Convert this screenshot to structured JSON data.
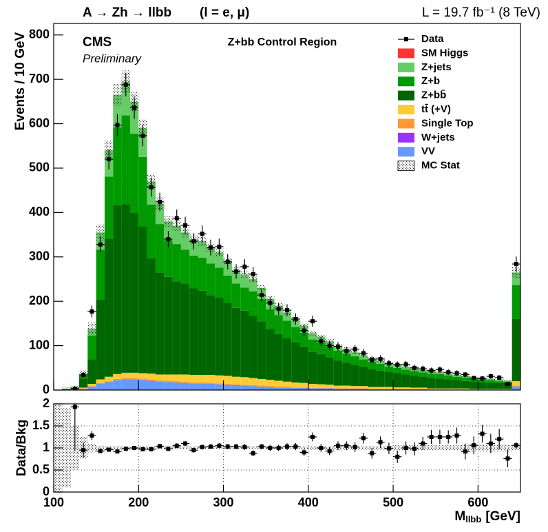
{
  "chart_data": [
    {
      "type": "histogram",
      "title": "A → Zh → llbb",
      "title_suffix": "(l = e, μ)",
      "luminosity": "L = 19.7 fb⁻¹  (8 TeV)",
      "experiment": "CMS",
      "status": "Preliminary",
      "region": "Z+bb Control Region",
      "y_label": "Events / 10 GeV",
      "ylim": [
        0,
        826
      ],
      "yticks": [
        0,
        100,
        200,
        300,
        400,
        500,
        600,
        700,
        800
      ],
      "bins": [
        100,
        110,
        120,
        130,
        140,
        150,
        160,
        170,
        180,
        190,
        200,
        210,
        220,
        230,
        240,
        250,
        260,
        270,
        280,
        290,
        300,
        310,
        320,
        330,
        340,
        350,
        360,
        370,
        380,
        390,
        400,
        410,
        420,
        430,
        440,
        450,
        460,
        470,
        480,
        490,
        500,
        510,
        520,
        530,
        540,
        550,
        560,
        570,
        580,
        590,
        600,
        610,
        620,
        630,
        640,
        650
      ],
      "legend": "upper right",
      "data": {
        "name": "Data",
        "color": "#000000",
        "values": [
          null,
          null,
          3,
          34,
          177,
          328,
          520,
          597,
          688,
          636,
          573,
          457,
          424,
          340,
          387,
          371,
          335,
          352,
          321,
          323,
          289,
          267,
          278,
          261,
          214,
          196,
          183,
          180,
          160,
          134,
          155,
          110,
          100,
          98,
          88,
          92,
          83,
          68,
          70,
          60,
          57,
          58,
          50,
          48,
          44,
          46,
          40,
          38,
          35,
          27,
          26,
          31,
          28,
          14,
          284
        ],
        "errors": [
          null,
          null,
          1.7,
          5.8,
          13.3,
          18.1,
          22.8,
          24.4,
          26.2,
          25.2,
          23.9,
          21.4,
          20.6,
          18.4,
          19.7,
          19.3,
          18.3,
          18.8,
          17.9,
          18,
          17,
          16.3,
          16.7,
          16.2,
          14.6,
          14,
          13.5,
          13.4,
          12.6,
          11.6,
          12.4,
          10.5,
          10,
          9.9,
          9.4,
          9.6,
          9.1,
          8.2,
          8.4,
          7.7,
          7.5,
          7.6,
          7.1,
          6.9,
          6.6,
          6.8,
          6.3,
          6.2,
          5.9,
          5.2,
          5.1,
          5.6,
          5.3,
          3.7,
          16.9
        ]
      },
      "series": [
        {
          "name": "SM Higgs",
          "color": "#ff3333",
          "values": [
            0,
            0,
            0,
            0,
            0,
            0,
            0,
            0,
            0,
            0,
            0,
            0,
            0,
            0,
            0,
            0,
            0,
            0,
            0,
            0,
            0,
            0,
            0,
            0,
            0,
            0,
            0,
            0,
            0,
            0,
            0,
            0,
            0,
            0,
            0,
            0,
            0,
            0,
            0,
            0,
            0,
            0,
            0,
            0,
            0,
            0,
            0,
            0,
            0,
            0,
            0,
            0,
            0,
            0,
            0
          ]
        },
        {
          "name": "Z+jets",
          "color": "#66cc66",
          "values": [
            0,
            0.3,
            0.7,
            4,
            15,
            39,
            59,
            73,
            76,
            72,
            65,
            52,
            46,
            42,
            41,
            39,
            37,
            37,
            35,
            34,
            32,
            30,
            29,
            28,
            25,
            23,
            21,
            19,
            18,
            16,
            14,
            13,
            12,
            11,
            10,
            9,
            9,
            8,
            7,
            7,
            6,
            6,
            5,
            5,
            5,
            4,
            4,
            4,
            3,
            3,
            3,
            3,
            3,
            2,
            29
          ]
        },
        {
          "name": "Z+b",
          "color": "#009900",
          "values": [
            0,
            1.2,
            1.8,
            6.5,
            54,
            112,
            141,
            176,
            200,
            179,
            157,
            121,
            109,
            83,
            84,
            76,
            74,
            74,
            71,
            68,
            61,
            55,
            52,
            55,
            50,
            44,
            43,
            39,
            35,
            31,
            28,
            26,
            24,
            23,
            20,
            19,
            16,
            17,
            15,
            12,
            12,
            11,
            10.5,
            9.5,
            9.5,
            10.5,
            8.5,
            7.5,
            7.5,
            7.5,
            6.5,
            5.5,
            4.5,
            4.5,
            76
          ]
        },
        {
          "name": "Z+bb̄",
          "color": "#006600",
          "values": [
            0,
            1,
            2,
            20,
            55,
            180,
            310,
            380,
            380,
            360,
            330,
            260,
            230,
            220,
            210,
            205,
            195,
            190,
            180,
            175,
            165,
            155,
            150,
            140,
            130,
            115,
            105,
            98,
            90,
            82,
            72,
            68,
            62,
            56,
            52,
            48,
            44,
            40,
            37,
            34,
            32,
            29,
            27,
            25,
            24,
            22,
            21,
            19,
            17,
            16,
            15,
            14,
            13,
            12,
            140
          ]
        },
        {
          "name": "tt̄ (+V)",
          "color": "#ffcc33",
          "values": [
            0,
            0,
            0.5,
            2,
            5,
            8,
            10,
            11,
            12,
            12,
            12,
            13,
            13,
            14,
            15,
            16,
            17,
            17,
            18,
            18,
            18,
            17,
            17,
            16,
            15,
            14,
            13,
            12,
            11,
            10,
            9,
            8,
            7,
            6,
            6,
            5,
            5,
            4,
            4,
            4,
            3,
            3,
            3,
            3,
            2,
            2,
            2,
            2,
            2,
            1,
            1,
            1,
            1,
            1,
            10
          ]
        },
        {
          "name": "Single Top",
          "color": "#ff9933",
          "values": [
            0,
            0,
            0,
            0.5,
            1,
            2,
            2,
            3,
            3,
            3,
            3,
            3,
            3,
            3,
            3,
            3,
            2,
            2,
            2,
            2,
            2,
            2,
            2,
            2,
            2,
            2,
            2,
            1,
            1,
            1,
            1,
            1,
            1,
            1,
            1,
            1,
            1,
            1,
            1,
            1,
            1,
            1,
            0.5,
            0.5,
            0.5,
            0.5,
            0.5,
            0.5,
            0.5,
            0.5,
            0.5,
            0.5,
            0.5,
            0.5,
            2
          ]
        },
        {
          "name": "W+jets",
          "color": "#9933ff",
          "values": [
            0,
            0,
            0,
            0,
            0,
            0,
            0,
            0,
            0,
            0,
            0,
            0,
            0,
            0,
            0,
            0,
            0,
            0,
            0,
            0,
            0,
            0,
            0,
            0,
            0,
            0,
            0,
            0,
            0,
            0,
            0,
            0,
            0,
            0,
            0,
            0,
            0,
            0,
            0,
            0,
            0,
            0,
            0,
            0,
            0,
            0,
            0,
            0,
            0,
            0,
            0,
            0,
            0,
            0,
            0
          ]
        },
        {
          "name": "VV",
          "color": "#6699ff",
          "values": [
            0,
            0.5,
            1,
            3,
            8,
            14,
            18,
            22,
            24,
            24,
            23,
            21,
            19,
            18,
            17,
            16,
            15,
            15,
            14,
            13,
            12,
            11,
            10,
            9,
            8,
            7,
            6,
            6,
            5,
            5,
            4,
            4,
            4,
            3,
            3,
            3,
            3,
            2,
            2,
            2,
            2,
            2,
            2,
            2,
            1,
            1,
            1,
            1,
            1,
            1,
            1,
            1,
            1,
            1,
            8
          ]
        }
      ],
      "mc_stat": {
        "name": "MC Stat",
        "errors": [
          0,
          2.7,
          3,
          9,
          14,
          18,
          22,
          25,
          25,
          22,
          20,
          16,
          14,
          12,
          11,
          11,
          10,
          10,
          9,
          9,
          8,
          8,
          8,
          8,
          7,
          7,
          7,
          6,
          6,
          6,
          5,
          5,
          5,
          4,
          4,
          4,
          4,
          3,
          3,
          3,
          3,
          3,
          3,
          3,
          3,
          3,
          3,
          2,
          2,
          2,
          2,
          2,
          2,
          2,
          12
        ]
      }
    },
    {
      "type": "errorbar",
      "y_label": "Data/Bkg",
      "x_label": "M",
      "x_label_sub": "llbb",
      "x_label_unit": "[GeV]",
      "xlim": [
        100,
        650
      ],
      "xticks": [
        100,
        200,
        300,
        400,
        500,
        600
      ],
      "ylim": [
        0,
        2
      ],
      "yticks": [
        0,
        0.5,
        1,
        1.5,
        2
      ],
      "grid": true,
      "values": [
        null,
        null,
        1.93,
        0.95,
        1.28,
        0.93,
        0.96,
        0.92,
        0.98,
        1.0,
        0.97,
        0.97,
        1.04,
        0.98,
        1.05,
        1.1,
        0.95,
        1.02,
        1.03,
        1.05,
        1.03,
        1.03,
        1.02,
        0.88,
        1.03,
        1.0,
        1.0,
        1.03,
        1.03,
        0.9,
        1.25,
        1.0,
        0.93,
        1.05,
        1.05,
        1.02,
        1.22,
        0.88,
        1.13,
        0.99,
        0.8,
        1.0,
        0.98,
        1.1,
        1.25,
        1.25,
        1.25,
        1.28,
        0.92,
        1.06,
        1.32,
        1.1,
        1.2,
        0.76,
        1.06
      ],
      "errors": [
        null,
        null,
        1.0,
        0.17,
        0.1,
        0.05,
        0.045,
        0.04,
        0.04,
        0.04,
        0.04,
        0.045,
        0.05,
        0.05,
        0.055,
        0.055,
        0.055,
        0.055,
        0.055,
        0.06,
        0.06,
        0.06,
        0.065,
        0.065,
        0.065,
        0.07,
        0.07,
        0.075,
        0.08,
        0.08,
        0.1,
        0.09,
        0.09,
        0.1,
        0.1,
        0.11,
        0.12,
        0.12,
        0.13,
        0.13,
        0.14,
        0.15,
        0.15,
        0.15,
        0.16,
        0.16,
        0.15,
        0.18,
        0.18,
        0.2,
        0.2,
        0.22,
        0.23,
        0.2,
        0.07
      ],
      "band": [
        1,
        0.9,
        0.5,
        0.25,
        0.1,
        0.05,
        0.04,
        0.04,
        0.04,
        0.035,
        0.035,
        0.035,
        0.035,
        0.03,
        0.03,
        0.03,
        0.03,
        0.03,
        0.03,
        0.03,
        0.03,
        0.03,
        0.03,
        0.03,
        0.03,
        0.03,
        0.03,
        0.03,
        0.03,
        0.03,
        0.04,
        0.04,
        0.04,
        0.04,
        0.04,
        0.04,
        0.04,
        0.04,
        0.04,
        0.04,
        0.06,
        0.06,
        0.06,
        0.06,
        0.06,
        0.06,
        0.06,
        0.06,
        0.08,
        0.08,
        0.08,
        0.08,
        0.08,
        0.08,
        0.05
      ]
    }
  ]
}
